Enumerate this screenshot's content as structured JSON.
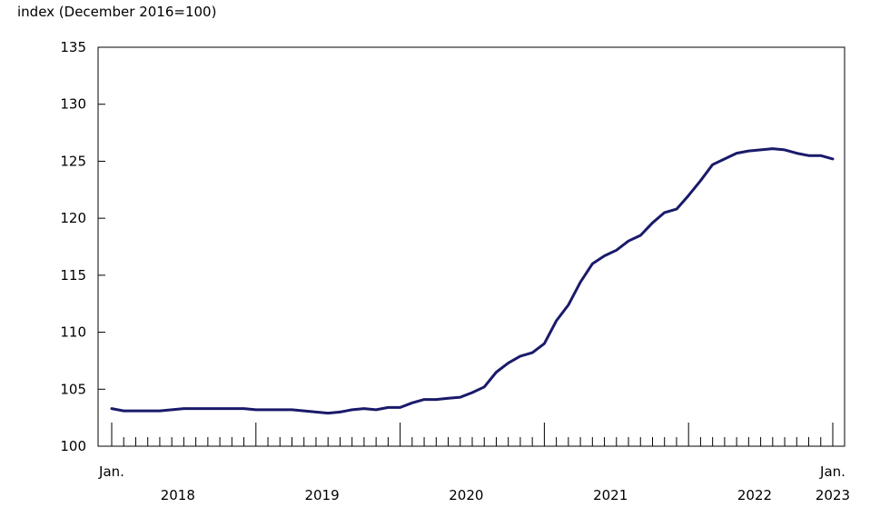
{
  "chart_data": {
    "type": "line",
    "ylabel": "index (December 2016=100)",
    "xlabel": "",
    "ylim": [
      100,
      135
    ],
    "y_ticks": [
      100,
      105,
      110,
      115,
      120,
      125,
      130,
      135
    ],
    "x_tick_labels": [
      {
        "lines": [
          "Jan."
        ]
      },
      {
        "lines": [
          "",
          "2018"
        ]
      },
      {
        "lines": [
          "",
          "2019"
        ]
      },
      {
        "lines": [
          "",
          "2020"
        ]
      },
      {
        "lines": [
          "",
          "2021"
        ]
      },
      {
        "lines": [
          "",
          "2022"
        ]
      },
      {
        "lines": [
          "Jan.",
          "2023"
        ]
      }
    ],
    "grid": false,
    "legend": "none",
    "series": [
      {
        "color": "#1a1a6b",
        "x": [
          "2018-01",
          "2018-02",
          "2018-03",
          "2018-04",
          "2018-05",
          "2018-06",
          "2018-07",
          "2018-08",
          "2018-09",
          "2018-10",
          "2018-11",
          "2018-12",
          "2019-01",
          "2019-02",
          "2019-03",
          "2019-04",
          "2019-05",
          "2019-06",
          "2019-07",
          "2019-08",
          "2019-09",
          "2019-10",
          "2019-11",
          "2019-12",
          "2020-01",
          "2020-02",
          "2020-03",
          "2020-04",
          "2020-05",
          "2020-06",
          "2020-07",
          "2020-08",
          "2020-09",
          "2020-10",
          "2020-11",
          "2020-12",
          "2021-01",
          "2021-02",
          "2021-03",
          "2021-04",
          "2021-05",
          "2021-06",
          "2021-07",
          "2021-08",
          "2021-09",
          "2021-10",
          "2021-11",
          "2021-12",
          "2022-01",
          "2022-02",
          "2022-03",
          "2022-04",
          "2022-05",
          "2022-06",
          "2022-07",
          "2022-08",
          "2022-09",
          "2022-10",
          "2022-11",
          "2022-12",
          "2023-01"
        ],
        "values": [
          103.3,
          103.1,
          103.1,
          103.1,
          103.1,
          103.2,
          103.3,
          103.3,
          103.3,
          103.3,
          103.3,
          103.3,
          103.2,
          103.2,
          103.2,
          103.2,
          103.1,
          103.0,
          102.9,
          103.0,
          103.2,
          103.3,
          103.2,
          103.4,
          103.4,
          103.8,
          104.1,
          104.1,
          104.2,
          104.3,
          104.7,
          105.2,
          106.5,
          107.3,
          107.9,
          108.2,
          109.0,
          111.0,
          112.4,
          114.4,
          116.0,
          116.7,
          117.2,
          118.0,
          118.5,
          119.6,
          120.5,
          120.8,
          122.0,
          123.3,
          124.7,
          125.2,
          125.7,
          125.9,
          126.0,
          126.1,
          126.0,
          125.7,
          125.5,
          125.5,
          125.2
        ]
      }
    ]
  }
}
